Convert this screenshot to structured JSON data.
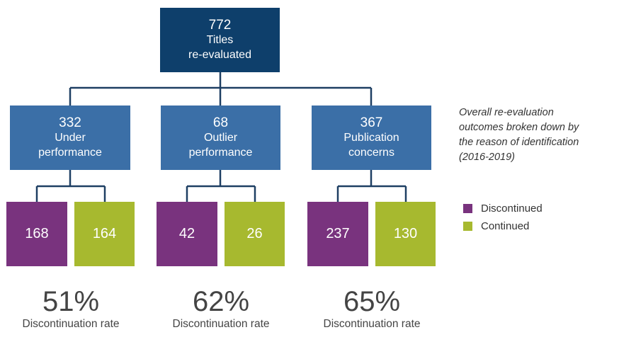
{
  "colors": {
    "root": "#0e3f6b",
    "category": "#3b6fa7",
    "discontinued": "#79337e",
    "continued": "#a7b92f",
    "connector": "#1e3f63"
  },
  "root": {
    "count": "772",
    "line1": "Titles",
    "line2": "re-evaluated"
  },
  "categories": [
    {
      "count": "332",
      "line1": "Under",
      "line2": "performance",
      "discontinued": "168",
      "continued": "164",
      "rate": "51%",
      "rate_label": "Discontinuation rate"
    },
    {
      "count": "68",
      "line1": "Outlier",
      "line2": "performance",
      "discontinued": "42",
      "continued": "26",
      "rate": "62%",
      "rate_label": "Discontinuation rate"
    },
    {
      "count": "367",
      "line1": "Publication",
      "line2": "concerns",
      "discontinued": "237",
      "continued": "130",
      "rate": "65%",
      "rate_label": "Discontinuation rate"
    }
  ],
  "caption": {
    "line1": "Overall re-evaluation",
    "line2": "outcomes broken down by",
    "line3": "the reason of identification",
    "line4": "(2016-2019)"
  },
  "legend": [
    {
      "label": "Discontinued",
      "color": "#79337e"
    },
    {
      "label": "Continued",
      "color": "#a7b92f"
    }
  ]
}
